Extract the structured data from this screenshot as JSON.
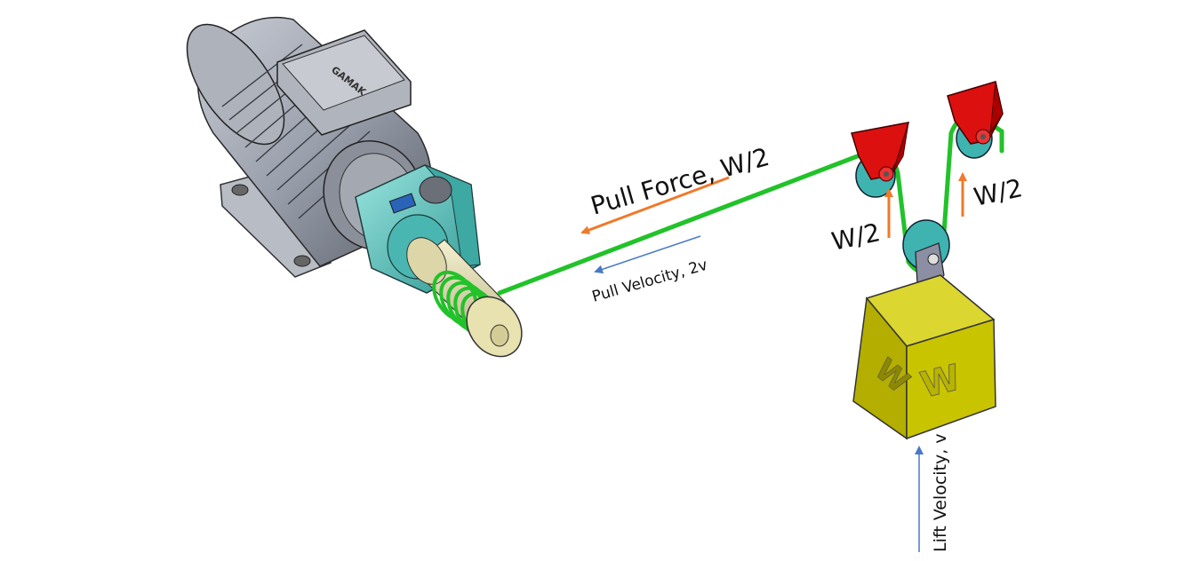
{
  "diagram": {
    "labels": {
      "pull_force": "Pull Force, W/2",
      "pull_velocity": "Pull Velocity, 2v",
      "tension_left": "W/2",
      "tension_right": "W/2",
      "lift_velocity": "Lift Velocity, v",
      "weight_front": "W",
      "weight_side": "W",
      "motor_brand": "GAMAK"
    },
    "colors": {
      "rope": "#22c22a",
      "force_arrow": "#ee7a2b",
      "velocity_arrow": "#4a78c8",
      "pulley_bracket": "#dd1010",
      "pulley_wheel": "#3fb3b0",
      "weight_block": "#c9c400",
      "gearbox": "#5fc9c4",
      "motor_body": "#9aa0ac",
      "drum": "#e8e2b0"
    },
    "icons": [
      "motor-icon",
      "gearbox-icon",
      "drum-icon",
      "pulley-icon",
      "weight-icon"
    ]
  }
}
